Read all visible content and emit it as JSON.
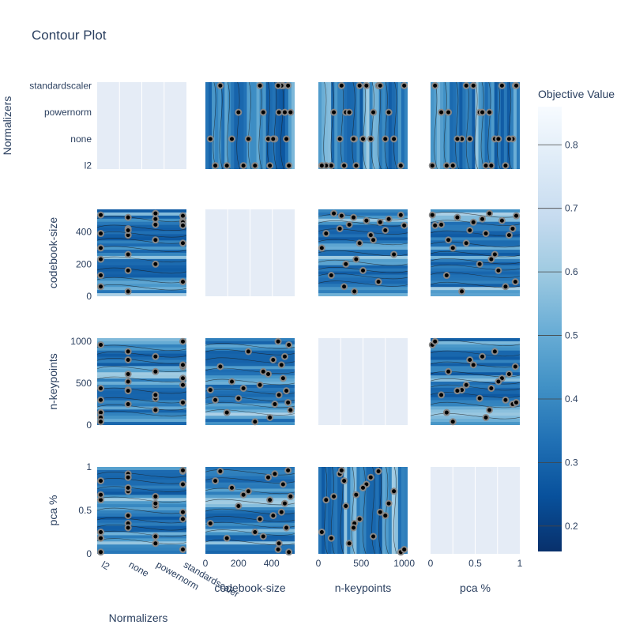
{
  "chart_data": {
    "type": "contour",
    "title": "Contour Plot",
    "params": [
      "Normalizers",
      "codebook-size",
      "n-keypoints",
      "pca %"
    ],
    "axes": {
      "Normalizers": {
        "categories": [
          "l2",
          "none",
          "powernorm",
          "standardscaler"
        ]
      },
      "codebook-size": {
        "range": [
          0,
          540
        ],
        "ticks": [
          0,
          200,
          400
        ],
        "tick_labels": [
          "0",
          "200",
          "400"
        ]
      },
      "n-keypoints": {
        "range": [
          0,
          1040
        ],
        "ticks": [
          0,
          500,
          1000
        ],
        "tick_labels": [
          "0",
          "500",
          "1000"
        ]
      },
      "pca %": {
        "range": [
          0,
          1.0
        ],
        "ticks": [
          0,
          0.5,
          1
        ],
        "tick_labels": [
          "0",
          "0.5",
          "1"
        ]
      }
    },
    "colorbar": {
      "title": "Objective Value",
      "range": [
        0.16,
        0.86
      ],
      "ticks": [
        0.2,
        0.3,
        0.4,
        0.5,
        0.6,
        0.7,
        0.8
      ],
      "tick_labels": [
        "0.2",
        "0.3",
        "0.4",
        "0.5",
        "0.6",
        "0.7",
        "0.8"
      ],
      "colorscale": [
        "#08306b",
        "#08519c",
        "#2171b5",
        "#4292c6",
        "#6baed6",
        "#9ecae1",
        "#c6dbef",
        "#deebf7",
        "#f7fbff"
      ]
    },
    "trials": [
      {
        "Normalizers": "none",
        "codebook-size": 30,
        "n-keypoints": 420,
        "pca %": 0.35,
        "value": 0.3
      },
      {
        "Normalizers": "standardscaler",
        "codebook-size": 90,
        "n-keypoints": 700,
        "pca %": 0.95,
        "value": 0.34
      },
      {
        "Normalizers": "l2",
        "codebook-size": 130,
        "n-keypoints": 150,
        "pca %": 0.18,
        "value": 0.45
      },
      {
        "Normalizers": "powernorm",
        "codebook-size": 200,
        "n-keypoints": 320,
        "pca %": 0.55,
        "value": 0.38
      },
      {
        "Normalizers": "none",
        "codebook-size": 260,
        "n-keypoints": 880,
        "pca %": 0.72,
        "value": 0.29
      },
      {
        "Normalizers": "standardscaler",
        "codebook-size": 330,
        "n-keypoints": 480,
        "pca %": 0.4,
        "value": 0.27
      },
      {
        "Normalizers": "l2",
        "codebook-size": 390,
        "n-keypoints": 90,
        "pca %": 0.62,
        "value": 0.33
      },
      {
        "Normalizers": "none",
        "codebook-size": 420,
        "n-keypoints": 250,
        "pca %": 0.92,
        "value": 0.31
      },
      {
        "Normalizers": "powernorm",
        "codebook-size": 445,
        "n-keypoints": 360,
        "pca %": 0.12,
        "value": 0.26
      },
      {
        "Normalizers": "standardscaler",
        "codebook-size": 470,
        "n-keypoints": 560,
        "pca %": 0.8,
        "value": 0.28
      },
      {
        "Normalizers": "none",
        "codebook-size": 490,
        "n-keypoints": 410,
        "pca %": 0.3,
        "value": 0.24
      },
      {
        "Normalizers": "l2",
        "codebook-size": 505,
        "n-keypoints": 960,
        "pca %": 0.02,
        "value": 0.35
      },
      {
        "Normalizers": "powernorm",
        "codebook-size": 515,
        "n-keypoints": 180,
        "pca %": 0.66,
        "value": 0.3
      },
      {
        "Normalizers": "standardscaler",
        "codebook-size": 460,
        "n-keypoints": 720,
        "pca %": 0.48,
        "value": 0.25
      },
      {
        "Normalizers": "none",
        "codebook-size": 380,
        "n-keypoints": 610,
        "pca %": 0.88,
        "value": 0.32
      },
      {
        "Normalizers": "l2",
        "codebook-size": 300,
        "n-keypoints": 40,
        "pca %": 0.25,
        "value": 0.4
      },
      {
        "Normalizers": "powernorm",
        "codebook-size": 480,
        "n-keypoints": 820,
        "pca %": 0.58,
        "value": 0.27
      },
      {
        "Normalizers": "standardscaler",
        "codebook-size": 440,
        "n-keypoints": 1000,
        "pca %": 0.05,
        "value": 0.36
      },
      {
        "Normalizers": "none",
        "codebook-size": 160,
        "n-keypoints": 520,
        "pca %": 0.76,
        "value": 0.37
      },
      {
        "Normalizers": "l2",
        "codebook-size": 60,
        "n-keypoints": 300,
        "pca %": 0.84,
        "value": 0.42
      },
      {
        "Normalizers": "powernorm",
        "codebook-size": 350,
        "n-keypoints": 640,
        "pca %": 0.2,
        "value": 0.29
      },
      {
        "Normalizers": "standardscaler",
        "codebook-size": 500,
        "n-keypoints": 270,
        "pca %": 0.96,
        "value": 0.26
      },
      {
        "Normalizers": "none",
        "codebook-size": 410,
        "n-keypoints": 780,
        "pca %": 0.44,
        "value": 0.28
      },
      {
        "Normalizers": "l2",
        "codebook-size": 230,
        "n-keypoints": 440,
        "pca %": 0.68,
        "value": 0.34
      }
    ]
  }
}
